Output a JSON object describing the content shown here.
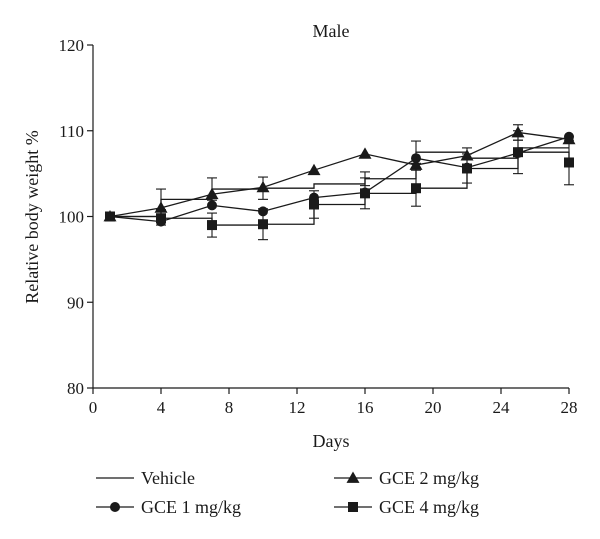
{
  "chart_data": {
    "type": "line",
    "title": "Male",
    "xlabel": "Days",
    "ylabel": "Relative body weight %",
    "xlim": [
      0,
      28
    ],
    "ylim": [
      80,
      120
    ],
    "xticks": [
      0,
      4,
      8,
      12,
      16,
      20,
      24,
      28
    ],
    "yticks": [
      80,
      90,
      100,
      110,
      120
    ],
    "grid": false,
    "legend_position": "bottom",
    "series": [
      {
        "name": "Vehicle",
        "marker": "none",
        "step": true,
        "x": [
          1,
          4,
          7,
          10,
          13,
          16,
          19,
          22,
          25,
          28
        ],
        "y": [
          100,
          102.0,
          103.2,
          103.3,
          103.8,
          104.4,
          107.5,
          106.8,
          108.0,
          108.0
        ],
        "err": [
          0,
          1.2,
          1.3,
          1.3,
          0,
          0.8,
          1.3,
          1.2,
          0.9,
          0
        ]
      },
      {
        "name": "GCE 1 mg/kg",
        "marker": "circle",
        "x": [
          1,
          4,
          7,
          10,
          13,
          16,
          19,
          22,
          25,
          28
        ],
        "y": [
          100,
          99.4,
          101.3,
          100.6,
          102.2,
          102.8,
          106.8,
          105.7,
          107.4,
          109.3
        ],
        "err": [
          0,
          0.4,
          0,
          0,
          0,
          0,
          0,
          0,
          0,
          0
        ]
      },
      {
        "name": "GCE 2 mg/kg",
        "marker": "triangle",
        "x": [
          1,
          4,
          7,
          10,
          13,
          16,
          19,
          22,
          25,
          28
        ],
        "y": [
          100,
          101.0,
          102.6,
          103.4,
          105.4,
          107.3,
          106.0,
          107.1,
          109.8,
          109.0
        ],
        "err": [
          0,
          0,
          0,
          0,
          0,
          0,
          0,
          0,
          0.9,
          0
        ]
      },
      {
        "name": "GCE 4 mg/kg",
        "marker": "square",
        "step": true,
        "x": [
          1,
          4,
          7,
          10,
          13,
          16,
          19,
          22,
          25,
          28
        ],
        "y": [
          100,
          99.8,
          99.0,
          99.1,
          101.4,
          102.7,
          103.3,
          105.6,
          107.5,
          106.3
        ],
        "err": [
          0,
          0,
          1.4,
          1.8,
          1.6,
          1.8,
          2.1,
          1.7,
          2.5,
          2.6
        ]
      }
    ]
  }
}
